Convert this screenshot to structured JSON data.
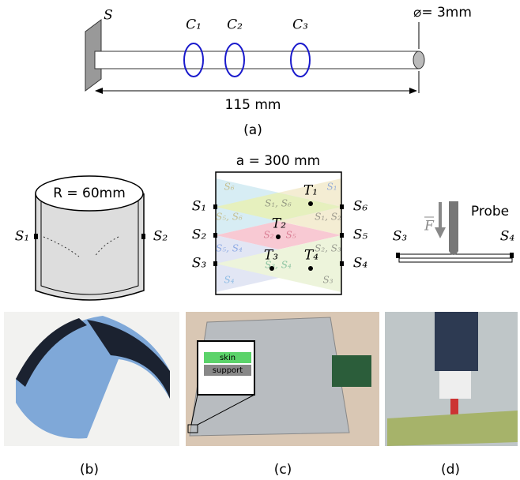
{
  "panel_a": {
    "source": "S",
    "coils": [
      "C₁",
      "C₂",
      "C₃"
    ],
    "diameter": "⌀= 3mm",
    "length": "115 mm",
    "caption": "(a)"
  },
  "panel_b": {
    "radius": "R = 60mm",
    "left_sensor": "S₁",
    "right_sensor": "S₂",
    "caption": "(b)"
  },
  "panel_c": {
    "width": "a = 300 mm",
    "left_sensors": [
      "S₁",
      "S₂",
      "S₃"
    ],
    "right_sensors": [
      "S₆",
      "S₅",
      "S₄"
    ],
    "taxels": [
      "T₁",
      "T₂",
      "T₃",
      "T₄"
    ],
    "regions": [
      "S₆",
      "S₁, S₆",
      "S₁",
      "S₅, S₆",
      "S₁, S₂",
      "S₂",
      "S₅",
      "S₅, S₄",
      "S₂, S₃",
      "S₃, S₄",
      "S₄",
      "S₃"
    ],
    "inset": [
      "skin",
      "support"
    ],
    "caption": "(c)"
  },
  "panel_d": {
    "force": "F",
    "probe": "Probe",
    "left_sensor": "S₃",
    "right_sensor": "S₄",
    "caption": "(d)"
  }
}
